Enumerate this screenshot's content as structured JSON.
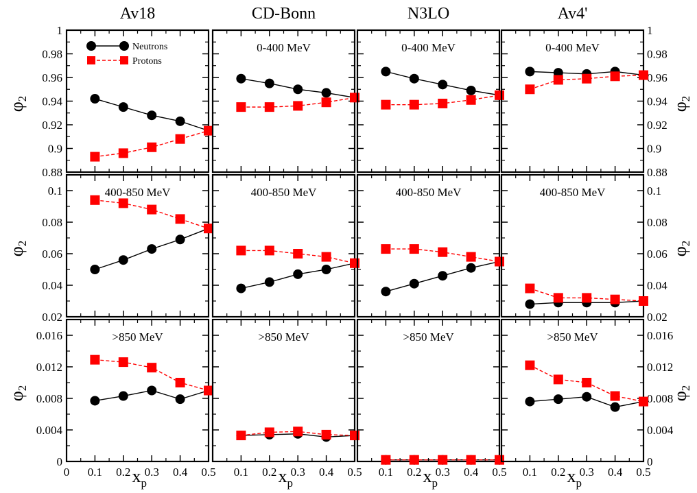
{
  "figure": {
    "columns": [
      "Av18",
      "CD-Bonn",
      "N3LO",
      "Av4'"
    ],
    "ylabel_symbol": "φ",
    "ylabel_subscript": "2",
    "xlabel_symbol": "x",
    "xlabel_subscript": "p",
    "legend": [
      {
        "label": "Neutrons",
        "color": "#000000",
        "marker": "circle",
        "line": "solid"
      },
      {
        "label": "Protons",
        "color": "#ff0000",
        "marker": "square",
        "line": "dashed"
      }
    ],
    "rows": [
      {
        "energy_label": "0-400 MeV",
        "ylim": [
          0.88,
          1.0
        ],
        "yticks": [
          "0.88",
          "0.9",
          "0.92",
          "0.94",
          "0.96",
          "0.98",
          "1"
        ]
      },
      {
        "energy_label": "400-850 MeV",
        "ylim": [
          0.02,
          0.11
        ],
        "yticks": [
          "0.02",
          "0.04",
          "0.06",
          "0.08",
          "0.1"
        ]
      },
      {
        "energy_label": ">850 MeV",
        "ylim": [
          0,
          0.018
        ],
        "yticks": [
          "0",
          "0.004",
          "0.008",
          "0.012",
          "0.016"
        ]
      }
    ],
    "xticks_first": [
      "0",
      "0.1",
      "0.2",
      "0.3",
      "0.4",
      "0.5"
    ],
    "xticks_rest": [
      "0.1",
      "0.2",
      "0.3",
      "0.4",
      "0.5"
    ]
  },
  "chart_data": [
    {
      "type": "line",
      "panel": "Av18 / 0-400 MeV",
      "x": [
        0.1,
        0.2,
        0.3,
        0.4,
        0.5
      ],
      "xlim": [
        0,
        0.5
      ],
      "ylim": [
        0.88,
        1.0
      ],
      "series": [
        {
          "name": "Neutrons",
          "values": [
            0.942,
            0.935,
            0.928,
            0.923,
            0.915
          ]
        },
        {
          "name": "Protons",
          "values": [
            0.893,
            0.896,
            0.901,
            0.908,
            0.915
          ]
        }
      ]
    },
    {
      "type": "line",
      "panel": "CD-Bonn / 0-400 MeV",
      "x": [
        0.1,
        0.2,
        0.3,
        0.4,
        0.5
      ],
      "xlim": [
        0,
        0.5
      ],
      "ylim": [
        0.88,
        1.0
      ],
      "series": [
        {
          "name": "Neutrons",
          "values": [
            0.959,
            0.955,
            0.95,
            0.947,
            0.943
          ]
        },
        {
          "name": "Protons",
          "values": [
            0.935,
            0.935,
            0.936,
            0.939,
            0.943
          ]
        }
      ]
    },
    {
      "type": "line",
      "panel": "N3LO / 0-400 MeV",
      "x": [
        0.1,
        0.2,
        0.3,
        0.4,
        0.5
      ],
      "xlim": [
        0,
        0.5
      ],
      "ylim": [
        0.88,
        1.0
      ],
      "series": [
        {
          "name": "Neutrons",
          "values": [
            0.965,
            0.959,
            0.954,
            0.949,
            0.945
          ]
        },
        {
          "name": "Protons",
          "values": [
            0.937,
            0.937,
            0.938,
            0.941,
            0.945
          ]
        }
      ]
    },
    {
      "type": "line",
      "panel": "Av4' / 0-400 MeV",
      "x": [
        0.1,
        0.2,
        0.3,
        0.4,
        0.5
      ],
      "xlim": [
        0,
        0.5
      ],
      "ylim": [
        0.88,
        1.0
      ],
      "series": [
        {
          "name": "Neutrons",
          "values": [
            0.965,
            0.964,
            0.963,
            0.965,
            0.962
          ]
        },
        {
          "name": "Protons",
          "values": [
            0.95,
            0.958,
            0.959,
            0.961,
            0.962
          ]
        }
      ]
    },
    {
      "type": "line",
      "panel": "Av18 / 400-850 MeV",
      "x": [
        0.1,
        0.2,
        0.3,
        0.4,
        0.5
      ],
      "xlim": [
        0,
        0.5
      ],
      "ylim": [
        0.02,
        0.11
      ],
      "series": [
        {
          "name": "Neutrons",
          "values": [
            0.05,
            0.056,
            0.063,
            0.069,
            0.076
          ]
        },
        {
          "name": "Protons",
          "values": [
            0.094,
            0.092,
            0.088,
            0.082,
            0.076
          ]
        }
      ]
    },
    {
      "type": "line",
      "panel": "CD-Bonn / 400-850 MeV",
      "x": [
        0.1,
        0.2,
        0.3,
        0.4,
        0.5
      ],
      "xlim": [
        0,
        0.5
      ],
      "ylim": [
        0.02,
        0.11
      ],
      "series": [
        {
          "name": "Neutrons",
          "values": [
            0.038,
            0.042,
            0.047,
            0.05,
            0.054
          ]
        },
        {
          "name": "Protons",
          "values": [
            0.062,
            0.062,
            0.06,
            0.058,
            0.054
          ]
        }
      ]
    },
    {
      "type": "line",
      "panel": "N3LO / 400-850 MeV",
      "x": [
        0.1,
        0.2,
        0.3,
        0.4,
        0.5
      ],
      "xlim": [
        0,
        0.5
      ],
      "ylim": [
        0.02,
        0.11
      ],
      "series": [
        {
          "name": "Neutrons",
          "values": [
            0.036,
            0.041,
            0.046,
            0.051,
            0.055
          ]
        },
        {
          "name": "Protons",
          "values": [
            0.063,
            0.063,
            0.061,
            0.058,
            0.055
          ]
        }
      ]
    },
    {
      "type": "line",
      "panel": "Av4' / 400-850 MeV",
      "x": [
        0.1,
        0.2,
        0.3,
        0.4,
        0.5
      ],
      "xlim": [
        0,
        0.5
      ],
      "ylim": [
        0.02,
        0.11
      ],
      "series": [
        {
          "name": "Neutrons",
          "values": [
            0.028,
            0.029,
            0.029,
            0.029,
            0.03
          ]
        },
        {
          "name": "Protons",
          "values": [
            0.038,
            0.032,
            0.032,
            0.031,
            0.03
          ]
        }
      ]
    },
    {
      "type": "line",
      "panel": "Av18 / >850 MeV",
      "x": [
        0.1,
        0.2,
        0.3,
        0.4,
        0.5
      ],
      "xlim": [
        0,
        0.5
      ],
      "ylim": [
        0,
        0.018
      ],
      "series": [
        {
          "name": "Neutrons",
          "values": [
            0.0077,
            0.0083,
            0.009,
            0.0079,
            0.009
          ]
        },
        {
          "name": "Protons",
          "values": [
            0.0129,
            0.0126,
            0.0119,
            0.01,
            0.009
          ]
        }
      ]
    },
    {
      "type": "line",
      "panel": "CD-Bonn / >850 MeV",
      "x": [
        0.1,
        0.2,
        0.3,
        0.4,
        0.5
      ],
      "xlim": [
        0,
        0.5
      ],
      "ylim": [
        0,
        0.018
      ],
      "series": [
        {
          "name": "Neutrons",
          "values": [
            0.0033,
            0.0034,
            0.0035,
            0.0031,
            0.0033
          ]
        },
        {
          "name": "Protons",
          "values": [
            0.0033,
            0.0037,
            0.0038,
            0.0034,
            0.0033
          ]
        }
      ]
    },
    {
      "type": "line",
      "panel": "N3LO / >850 MeV",
      "x": [
        0.1,
        0.2,
        0.3,
        0.4,
        0.5
      ],
      "xlim": [
        0,
        0.5
      ],
      "ylim": [
        0,
        0.018
      ],
      "series": [
        {
          "name": "Neutrons",
          "values": [
            0.0002,
            0.0002,
            0.0002,
            0.0002,
            0.0002
          ]
        },
        {
          "name": "Protons",
          "values": [
            0.0002,
            0.0002,
            0.0002,
            0.0002,
            0.0002
          ]
        }
      ]
    },
    {
      "type": "line",
      "panel": "Av4' / >850 MeV",
      "x": [
        0.1,
        0.2,
        0.3,
        0.4,
        0.5
      ],
      "xlim": [
        0,
        0.5
      ],
      "ylim": [
        0,
        0.018
      ],
      "series": [
        {
          "name": "Neutrons",
          "values": [
            0.0076,
            0.0079,
            0.0082,
            0.0069,
            0.0076
          ]
        },
        {
          "name": "Protons",
          "values": [
            0.0122,
            0.0104,
            0.01,
            0.0083,
            0.0076
          ]
        }
      ]
    }
  ]
}
